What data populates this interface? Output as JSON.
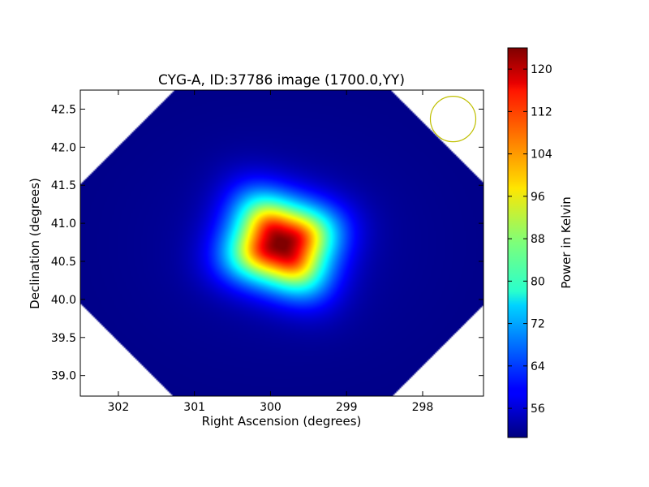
{
  "chart_data": {
    "type": "heatmap",
    "title": "CYG-A, ID:37786 image (1700.0,YY)",
    "xlabel": "Right Ascension (degrees)",
    "ylabel": "Declination (degrees)",
    "xlim": [
      302.5,
      297.2
    ],
    "ylim": [
      38.73,
      42.75
    ],
    "x_ticks": [
      302,
      301,
      300,
      299,
      298
    ],
    "y_ticks": [
      39.0,
      39.5,
      40.0,
      40.5,
      41.0,
      41.5,
      42.0,
      42.5
    ],
    "x_tick_labels": [
      "302",
      "301",
      "300",
      "299",
      "298"
    ],
    "y_tick_labels": [
      "39.0",
      "39.5",
      "40.0",
      "40.5",
      "41.0",
      "41.5",
      "42.0",
      "42.5"
    ],
    "colormap": "jet",
    "colorbar": {
      "label": "Power in Kelvin",
      "range": [
        50.5,
        124
      ],
      "ticks": [
        56,
        64,
        72,
        80,
        88,
        96,
        104,
        112,
        120
      ],
      "tick_labels": [
        "56",
        "64",
        "72",
        "80",
        "88",
        "96",
        "104",
        "112",
        "120"
      ]
    },
    "source": {
      "ra": 299.87,
      "dec": 40.74,
      "peak_value": 123,
      "background_value": 51
    },
    "beam_marker": {
      "ra": 297.6,
      "dec": 42.37,
      "color": "#bfbf00"
    },
    "grid": false
  }
}
